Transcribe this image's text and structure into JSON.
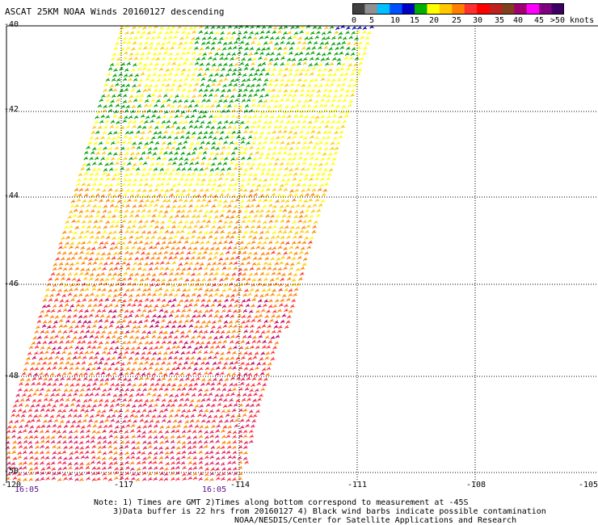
{
  "title": "ASCAT 25KM NOAA Winds 20160127 descending",
  "colorbar": {
    "labels": [
      "0",
      "5",
      "10",
      "15",
      "20",
      "25",
      "30",
      "35",
      "40",
      "45",
      ">50 knots"
    ],
    "colors": [
      "#404040",
      "#909090",
      "#00c0ff",
      "#0050ff",
      "#0000c0",
      "#00b000",
      "#ffff00",
      "#ffc800",
      "#ff8000",
      "#ff3030",
      "#ff0000",
      "#c02020",
      "#804020",
      "#a00070",
      "#ff00ff",
      "#800080",
      "#3c0064"
    ]
  },
  "axes": {
    "lat_labels": [
      "-40",
      "-42",
      "-44",
      "-46",
      "-48",
      "-50"
    ],
    "lon_labels": [
      "-120",
      "-117",
      "-114",
      "-111",
      "-108",
      "-105"
    ]
  },
  "times": [
    "16:05",
    "16:05"
  ],
  "notes": [
    "Note: 1) Times are GMT 2)Times along bottom correspond to measurement at -45S",
    "3)Data buffer is 22 hrs from 20160127 4) Black wind barbs indicate possible contamination",
    "NOAA/NESDIS/Center for Satellite Applications and Research"
  ]
}
